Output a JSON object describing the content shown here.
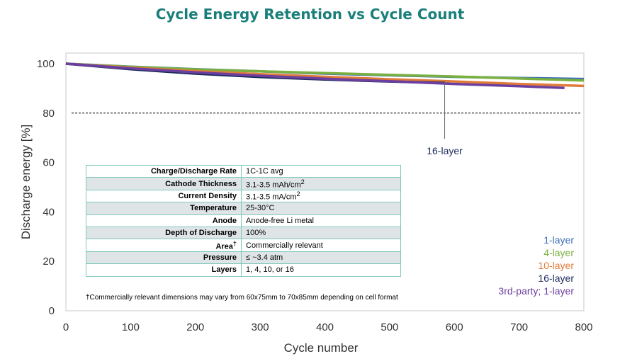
{
  "chart_data": {
    "type": "line",
    "title": "Cycle Energy Retention vs Cycle Count",
    "xlabel": "Cycle number",
    "ylabel": "Discharge energy [%]",
    "xlim": [
      0,
      800
    ],
    "ylim": [
      0,
      100
    ],
    "xticks": [
      0,
      100,
      200,
      300,
      400,
      500,
      600,
      700,
      800
    ],
    "yticks": [
      0,
      20,
      40,
      60,
      80,
      100
    ],
    "reference_line": {
      "y": 80,
      "style": "dashed"
    },
    "annotation": {
      "text": "16-layer",
      "x": 585,
      "y": 93
    },
    "series": [
      {
        "name": "1-layer",
        "color": "#3d6fb6",
        "x": [
          0,
          100,
          200,
          300,
          400,
          500,
          600,
          700,
          800
        ],
        "y": [
          100,
          98.8,
          97.8,
          96.9,
          96.0,
          95.3,
          94.7,
          94.2,
          93.8
        ]
      },
      {
        "name": "4-layer",
        "color": "#7ab03f",
        "x": [
          0,
          100,
          200,
          300,
          400,
          500,
          600,
          700,
          800
        ],
        "y": [
          100,
          98.7,
          97.7,
          96.9,
          96.2,
          95.5,
          94.8,
          94.0,
          93.2
        ]
      },
      {
        "name": "10-layer",
        "color": "#e07b39",
        "x": [
          0,
          100,
          200,
          300,
          400,
          500,
          600,
          700,
          800
        ],
        "y": [
          100,
          98.4,
          97.0,
          95.8,
          94.7,
          93.7,
          92.8,
          91.8,
          91.0
        ]
      },
      {
        "name": "16-layer",
        "color": "#1b2a5a",
        "x": [
          0,
          100,
          200,
          300,
          400,
          500,
          585
        ],
        "y": [
          100,
          97.8,
          96.0,
          94.6,
          93.6,
          92.8,
          92.2
        ]
      },
      {
        "name": "3rd-party; 1-layer",
        "color": "#6b3fa0",
        "x": [
          0,
          100,
          200,
          300,
          400,
          500,
          600,
          700,
          770
        ],
        "y": [
          100,
          98.1,
          96.5,
          95.1,
          93.9,
          92.9,
          91.8,
          90.9,
          90.2
        ]
      }
    ],
    "legend": {
      "position": "bottom-right"
    }
  },
  "table": {
    "rows": [
      {
        "param": "Charge/Discharge Rate",
        "value": "1C-1C avg"
      },
      {
        "param": "Cathode Thickness",
        "value": "3.1-3.5 mAh/cm",
        "sup": "2"
      },
      {
        "param": "Current Density",
        "value": "3.1-3.5 mA/cm",
        "sup": "2"
      },
      {
        "param": "Temperature",
        "value": "25-30°C"
      },
      {
        "param": "Anode",
        "value": "Anode-free Li metal"
      },
      {
        "param": "Depth of Discharge",
        "value": "100%"
      },
      {
        "param": "Area",
        "param_sup": "†",
        "value": "Commercially relevant"
      },
      {
        "param": "Pressure",
        "value": "≤ ~3.4 atm"
      },
      {
        "param": "Layers",
        "value": "1, 4, 10, or 16"
      }
    ],
    "footnote": "†Commercially relevant dimensions may vary from 60x75mm to 70x85mm depending on cell format"
  }
}
